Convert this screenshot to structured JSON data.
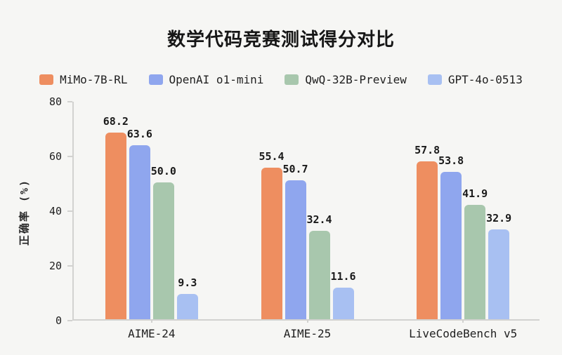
{
  "title": "数学代码竞赛测试得分对比",
  "chart_data": {
    "type": "bar",
    "title": "数学代码竞赛测试得分对比",
    "categories": [
      "AIME-24",
      "AIME-25",
      "LiveCodeBench v5"
    ],
    "series": [
      {
        "name": "MiMo-7B-RL",
        "color": "#EE8E60",
        "values": [
          68.2,
          55.4,
          57.8
        ]
      },
      {
        "name": "OpenAI o1-mini",
        "color": "#8FA6EE",
        "values": [
          63.6,
          50.7,
          53.8
        ]
      },
      {
        "name": "QwQ-32B-Preview",
        "color": "#A8C7AD",
        "values": [
          50.0,
          32.4,
          41.9
        ]
      },
      {
        "name": "GPT-4o-0513",
        "color": "#A8C0F2",
        "values": [
          9.3,
          11.6,
          32.9
        ]
      }
    ],
    "ylabel": "正确率 (%)",
    "xlabel": "",
    "ylim": [
      0,
      80
    ],
    "yticks": [
      0,
      20,
      40,
      60,
      80
    ],
    "value_labels": true,
    "value_label_decimals": 1,
    "legend_position": "top",
    "grid": false,
    "background_color": "#F6F6F4",
    "axis_color": "#D2D2D0",
    "text_color": "#1F1F1F"
  }
}
